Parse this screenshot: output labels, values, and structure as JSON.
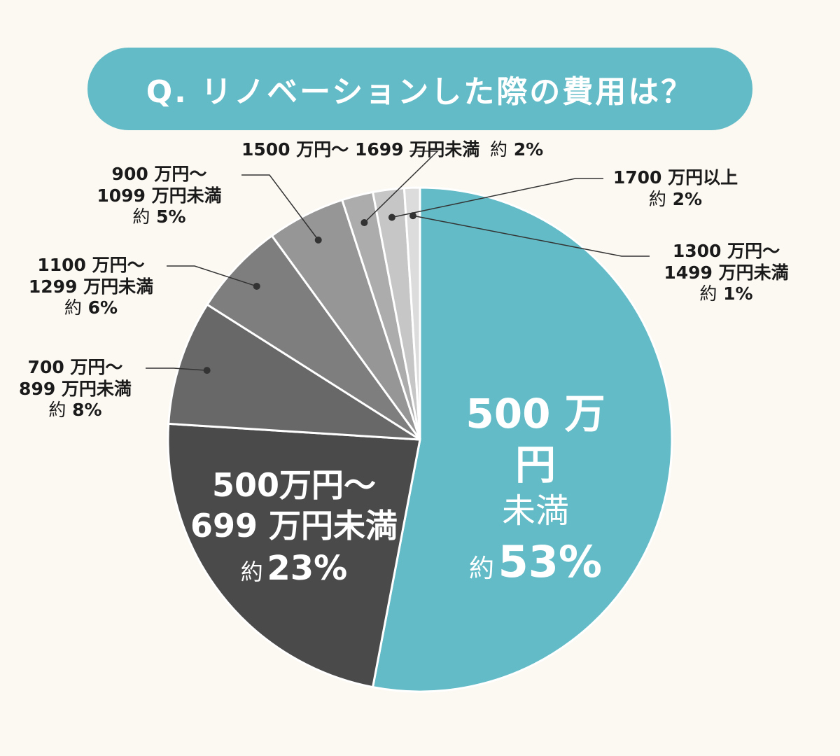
{
  "title": "Q. リノベーションした際の費用は？",
  "chart_data": {
    "type": "pie",
    "title": "Q. リノベーションした際の費用は？",
    "slices": [
      {
        "lines": [
          "500 万円",
          "未満"
        ],
        "pre": "約",
        "pct": "53%",
        "value": 53,
        "color": "#62bbc6"
      },
      {
        "lines": [
          "500万円～",
          "699 万円未満"
        ],
        "pre": "約",
        "pct": "23%",
        "value": 23,
        "color": "#4a4a4a"
      },
      {
        "lines": [
          "700 万円～",
          "899 万円未満"
        ],
        "pre": "約",
        "pct": "8%",
        "value": 8,
        "color": "#686868"
      },
      {
        "lines": [
          "1100 万円～",
          "1299 万円未満"
        ],
        "pre": "約",
        "pct": "6%",
        "value": 6,
        "color": "#7e7e7e"
      },
      {
        "lines": [
          "900 万円～",
          "1099 万円未満"
        ],
        "pre": "約",
        "pct": "5%",
        "value": 5,
        "color": "#969696"
      },
      {
        "lines": [
          "1500 万円～ 1699 万円未満"
        ],
        "pre": "約",
        "pct": "2%",
        "value": 2,
        "color": "#acacac"
      },
      {
        "lines": [
          "1700 万円以上"
        ],
        "pre": "約",
        "pct": "2%",
        "value": 2,
        "color": "#c6c6c6"
      },
      {
        "lines": [
          "1300 万円～",
          "1499 万円未満"
        ],
        "pre": "約",
        "pct": "1%",
        "value": 1,
        "color": "#dcdcdc"
      }
    ]
  }
}
